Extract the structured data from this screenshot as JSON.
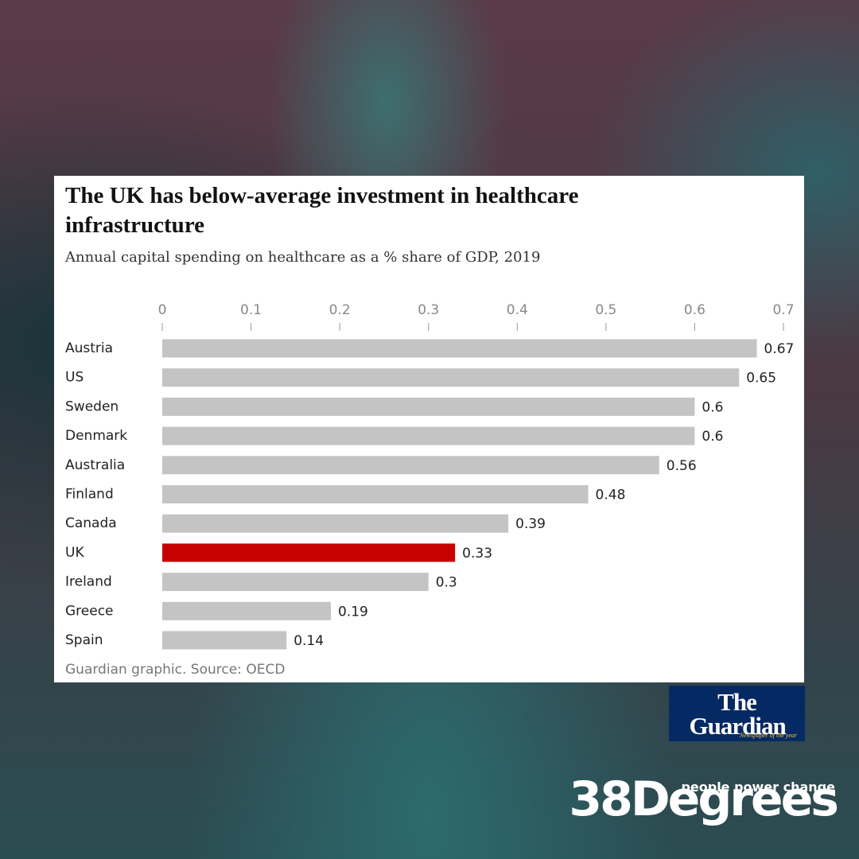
{
  "chart_data": {
    "type": "barh",
    "title": "The UK has below-average investment in healthcare infrastructure",
    "subtitle": "Annual capital spending on healthcare as a % share of GDP, 2019",
    "source": "Guardian graphic. Source: OECD",
    "categories": [
      "Austria",
      "US",
      "Sweden",
      "Denmark",
      "Australia",
      "Finland",
      "Canada",
      "UK",
      "Ireland",
      "Greece",
      "Spain"
    ],
    "values": [
      0.67,
      0.65,
      0.6,
      0.6,
      0.56,
      0.48,
      0.39,
      0.33,
      0.3,
      0.19,
      0.14
    ],
    "colors": [
      "#c4c4c4",
      "#c4c4c4",
      "#c4c4c4",
      "#c4c4c4",
      "#c4c4c4",
      "#c4c4c4",
      "#c4c4c4",
      "#c70000",
      "#c4c4c4",
      "#c4c4c4",
      "#c4c4c4"
    ],
    "xlim": [
      0,
      0.7
    ],
    "xticks": [
      0,
      0.1,
      0.2,
      0.3,
      0.4,
      0.5,
      0.6,
      0.7
    ]
  },
  "branding": {
    "guardian": "The Guardian",
    "guardian_tagline": "Newspaper of the year",
    "org": "38Degrees",
    "org_tagline": "people power change"
  }
}
